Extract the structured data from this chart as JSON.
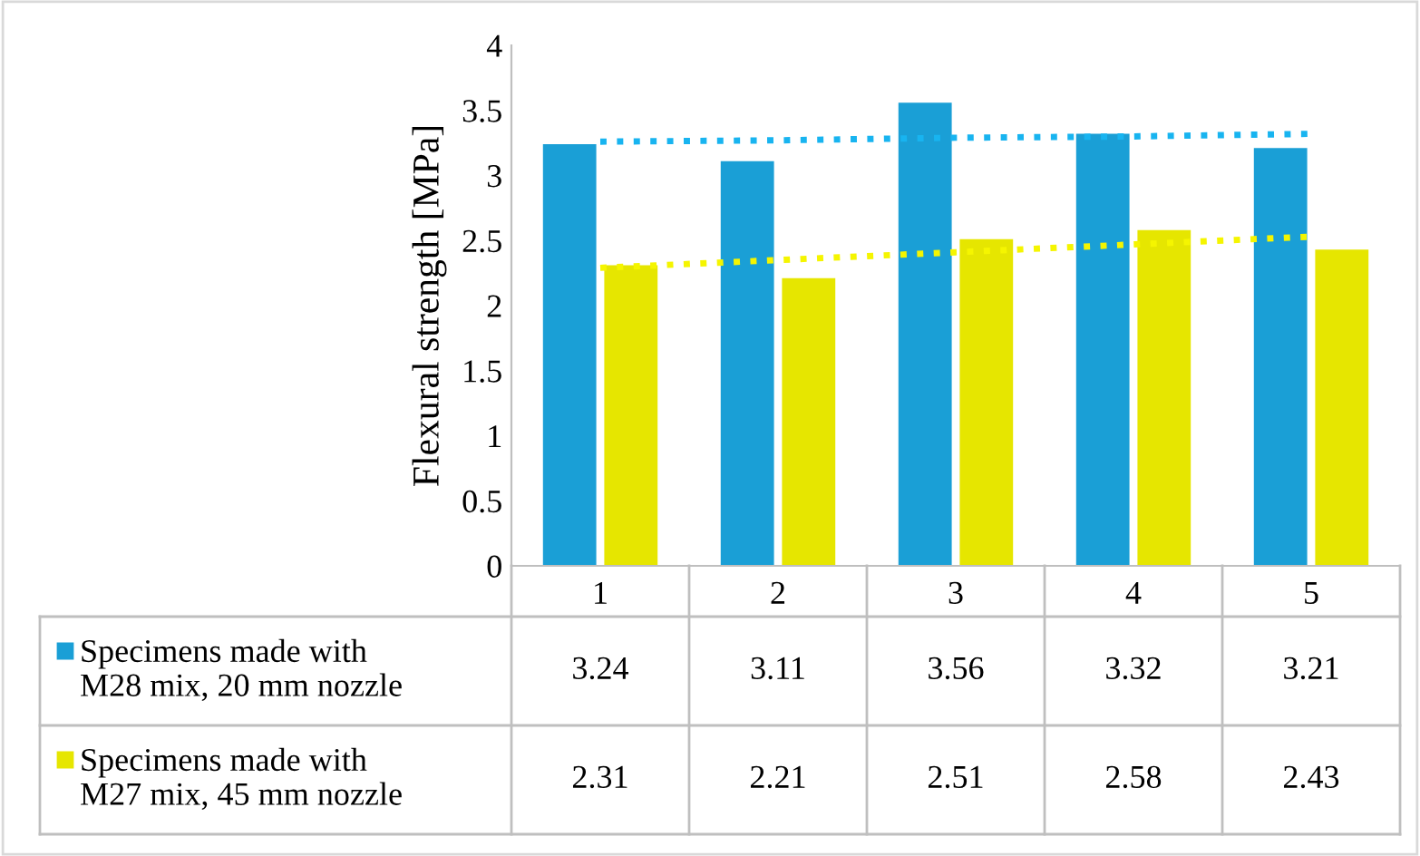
{
  "chart_data": {
    "type": "bar",
    "ylabel": "Flexural strength [MPa]",
    "categories": [
      "1",
      "2",
      "3",
      "4",
      "5"
    ],
    "series": [
      {
        "name": "Specimens made with\nM28 mix, 20 mm nozzle",
        "color": "#1a9fd6",
        "values": [
          3.24,
          3.11,
          3.56,
          3.32,
          3.21
        ],
        "value_labels": [
          "3.24",
          "3.11",
          "3.56",
          "3.32",
          "3.21"
        ]
      },
      {
        "name": "Specimens made with\nM27 mix, 45 mm nozzle",
        "color": "#e6e600",
        "values": [
          2.31,
          2.21,
          2.51,
          2.58,
          2.43
        ],
        "value_labels": [
          "2.31",
          "2.21",
          "2.51",
          "2.58",
          "2.43"
        ]
      },
      {
        "type": "line",
        "color": "#18b4f0",
        "line_style": "dotted",
        "values": [
          3.26,
          3.27,
          3.29,
          3.3,
          3.32
        ]
      },
      {
        "type": "line",
        "color": "#f5f500",
        "line_style": "dotted",
        "values": [
          2.29,
          2.35,
          2.41,
          2.47,
          2.53
        ]
      }
    ],
    "ylim": [
      0,
      4
    ],
    "yticks": [
      0,
      0.5,
      1,
      1.5,
      2,
      2.5,
      3,
      3.5,
      4
    ],
    "grid": false,
    "legend": "bottom"
  }
}
